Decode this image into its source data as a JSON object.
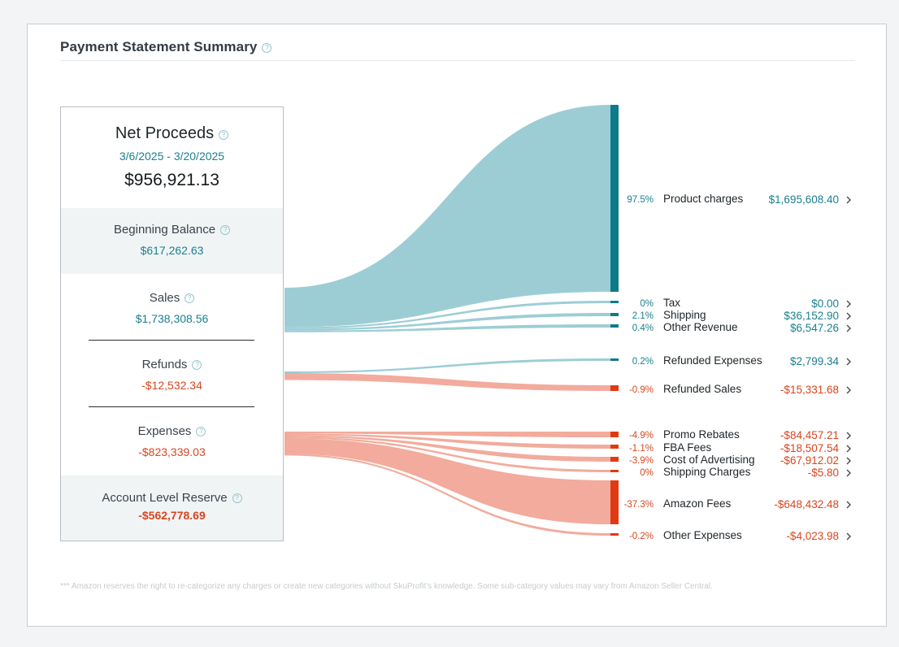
{
  "header": {
    "title": "Payment Statement Summary"
  },
  "summary": {
    "net_proceeds": {
      "label": "Net Proceeds",
      "date_range": "3/6/2025 - 3/20/2025",
      "value": "$956,921.13"
    },
    "beginning_balance": {
      "label": "Beginning Balance",
      "value": "$617,262.63"
    },
    "sales": {
      "label": "Sales",
      "value": "$1,738,308.56"
    },
    "refunds": {
      "label": "Refunds",
      "value": "-$12,532.34"
    },
    "expenses": {
      "label": "Expenses",
      "value": "-$823,339.03"
    },
    "reserve": {
      "label": "Account Level Reserve",
      "value": "-$562,778.69"
    }
  },
  "colors": {
    "teal_fill": "#9ccdd5",
    "teal_bar": "#0f7a8a",
    "red_fill": "#f2ab9c",
    "red_bar": "#e03a12",
    "teal_text": "#1a7f90",
    "red_text": "#d9451f"
  },
  "chart_data": {
    "type": "sankey",
    "sources": [
      {
        "name": "Sales",
        "value": 1738308.56
      },
      {
        "name": "Refunds",
        "value": -12532.34
      },
      {
        "name": "Expenses",
        "value": -823339.03
      }
    ],
    "targets": [
      {
        "source": "Sales",
        "name": "Product charges",
        "pct": "97.5%",
        "value": 1695608.4,
        "display": "$1,695,608.40",
        "sign": "pos"
      },
      {
        "source": "Sales",
        "name": "Tax",
        "pct": "0%",
        "value": 0.0,
        "display": "$0.00",
        "sign": "pos"
      },
      {
        "source": "Sales",
        "name": "Shipping",
        "pct": "2.1%",
        "value": 36152.9,
        "display": "$36,152.90",
        "sign": "pos"
      },
      {
        "source": "Sales",
        "name": "Other Revenue",
        "pct": "0.4%",
        "value": 6547.26,
        "display": "$6,547.26",
        "sign": "pos"
      },
      {
        "source": "Refunds",
        "name": "Refunded Expenses",
        "pct": "0.2%",
        "value": 2799.34,
        "display": "$2,799.34",
        "sign": "pos"
      },
      {
        "source": "Refunds",
        "name": "Refunded Sales",
        "pct": "-0.9%",
        "value": -15331.68,
        "display": "-$15,331.68",
        "sign": "neg"
      },
      {
        "source": "Expenses",
        "name": "Promo Rebates",
        "pct": "-4.9%",
        "value": -84457.21,
        "display": "-$84,457.21",
        "sign": "neg"
      },
      {
        "source": "Expenses",
        "name": "FBA Fees",
        "pct": "-1.1%",
        "value": -18507.54,
        "display": "-$18,507.54",
        "sign": "neg"
      },
      {
        "source": "Expenses",
        "name": "Cost of Advertising",
        "pct": "-3.9%",
        "value": -67912.02,
        "display": "-$67,912.02",
        "sign": "neg"
      },
      {
        "source": "Expenses",
        "name": "Shipping Charges",
        "pct": "0%",
        "value": -5.8,
        "display": "-$5.80",
        "sign": "neg"
      },
      {
        "source": "Expenses",
        "name": "Amazon Fees",
        "pct": "-37.3%",
        "value": -648432.48,
        "display": "-$648,432.48",
        "sign": "neg"
      },
      {
        "source": "Expenses",
        "name": "Other Expenses",
        "pct": "-0.2%",
        "value": -4023.98,
        "display": "-$4,023.98",
        "sign": "neg"
      }
    ]
  },
  "footnote": "*** Amazon reserves the right to re-categorize any charges or create new categories without SkuProfit's knowledge. Some sub-category values may vary from Amazon Seller Central."
}
